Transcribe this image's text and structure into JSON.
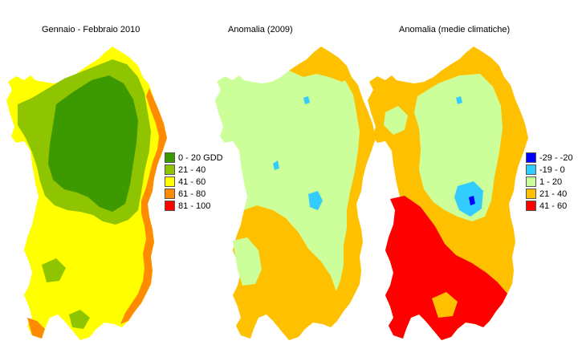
{
  "maps": [
    {
      "title": "Gennaio - Febbraio 2010",
      "legend": [
        {
          "label": "0 - 20 GDD",
          "color": "#3c9a00"
        },
        {
          "label": "21 - 40",
          "color": "#8fc400"
        },
        {
          "label": "41 - 60",
          "color": "#ffff00"
        },
        {
          "label": "61 - 80",
          "color": "#ff8c00"
        },
        {
          "label": "81 - 100",
          "color": "#ff0000"
        }
      ]
    },
    {
      "title": "Anomalia (2009)",
      "legend": []
    },
    {
      "title": "Anomalia (medie climatiche)",
      "legend": [
        {
          "label": "-29 - -20",
          "color": "#0000ff"
        },
        {
          "label": "-19 - 0",
          "color": "#33ccff"
        },
        {
          "label": "1 - 20",
          "color": "#ccff99"
        },
        {
          "label": "21 - 40",
          "color": "#ffc000"
        },
        {
          "label": "41 - 60",
          "color": "#ff0000"
        }
      ]
    }
  ]
}
